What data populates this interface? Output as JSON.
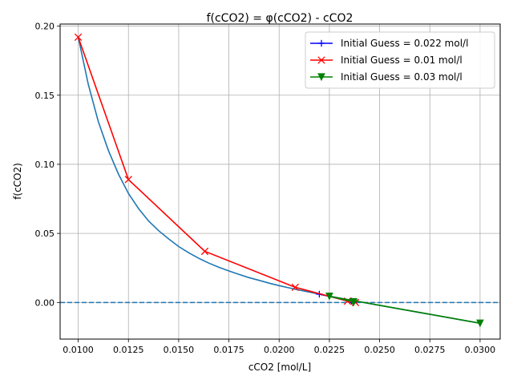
{
  "chart_data": {
    "type": "line",
    "title": "f(cCO2) = φ(cCO2) - cCO2",
    "xlabel": "cCO2 [mol/L]",
    "ylabel": "f(cCO2)",
    "xlim": [
      0.0091,
      0.031
    ],
    "ylim": [
      -0.0265,
      0.2015
    ],
    "xticks": [
      0.01,
      0.0125,
      0.015,
      0.0175,
      0.02,
      0.0225,
      0.025,
      0.0275,
      0.03
    ],
    "xtick_labels": [
      "0.0100",
      "0.0125",
      "0.0150",
      "0.0175",
      "0.0200",
      "0.0225",
      "0.0250",
      "0.0275",
      "0.0300"
    ],
    "yticks": [
      0.0,
      0.05,
      0.1,
      0.15,
      0.2
    ],
    "ytick_labels": [
      "0.00",
      "0.05",
      "0.10",
      "0.15",
      "0.20"
    ],
    "grid": true,
    "legend_position": "top-right",
    "zero_line": {
      "y": 0,
      "color": "#1f77b4",
      "style": "dashed"
    },
    "curve": {
      "color": "#1f77b4",
      "x": [
        0.01,
        0.0105,
        0.011,
        0.0115,
        0.012,
        0.0125,
        0.013,
        0.0135,
        0.014,
        0.0145,
        0.015,
        0.0155,
        0.016,
        0.0165,
        0.017,
        0.0175,
        0.018,
        0.0185,
        0.019,
        0.0195,
        0.02,
        0.0205,
        0.021,
        0.0215,
        0.022,
        0.0225,
        0.023,
        0.0235,
        0.024,
        0.0245,
        0.025,
        0.0255,
        0.026,
        0.0265,
        0.027,
        0.0275,
        0.028,
        0.0285,
        0.029,
        0.0295,
        0.03
      ],
      "y": [
        0.192,
        0.158,
        0.131,
        0.11,
        0.093,
        0.079,
        0.068,
        0.059,
        0.052,
        0.046,
        0.0405,
        0.036,
        0.032,
        0.0285,
        0.0255,
        0.0228,
        0.0203,
        0.018,
        0.016,
        0.014,
        0.0122,
        0.0106,
        0.009,
        0.0075,
        0.006,
        0.0046,
        0.0032,
        0.0018,
        0.0005,
        -0.0008,
        -0.0021,
        -0.0034,
        -0.0047,
        -0.006,
        -0.0073,
        -0.0086,
        -0.0099,
        -0.0112,
        -0.0125,
        -0.0138,
        -0.015
      ]
    },
    "series": [
      {
        "name": "Initial Guess = 0.022 mol/l",
        "color": "#0000ff",
        "marker": "plus",
        "x": [
          0.022,
          0.0236,
          0.0237
        ],
        "y": [
          0.006,
          0.001,
          0.0
        ]
      },
      {
        "name": "Initial Guess = 0.01 mol/l",
        "color": "#ff0000",
        "marker": "x",
        "x": [
          0.01,
          0.0125,
          0.0163,
          0.0208,
          0.0234,
          0.0238
        ],
        "y": [
          0.192,
          0.089,
          0.037,
          0.011,
          0.001,
          0.0
        ]
      },
      {
        "name": "Initial Guess = 0.03 mol/l",
        "color": "#008000",
        "marker": "triangle-down",
        "x": [
          0.03,
          0.0225,
          0.0237,
          0.0237
        ],
        "y": [
          -0.015,
          0.0045,
          0.0005,
          0.0
        ]
      }
    ]
  }
}
